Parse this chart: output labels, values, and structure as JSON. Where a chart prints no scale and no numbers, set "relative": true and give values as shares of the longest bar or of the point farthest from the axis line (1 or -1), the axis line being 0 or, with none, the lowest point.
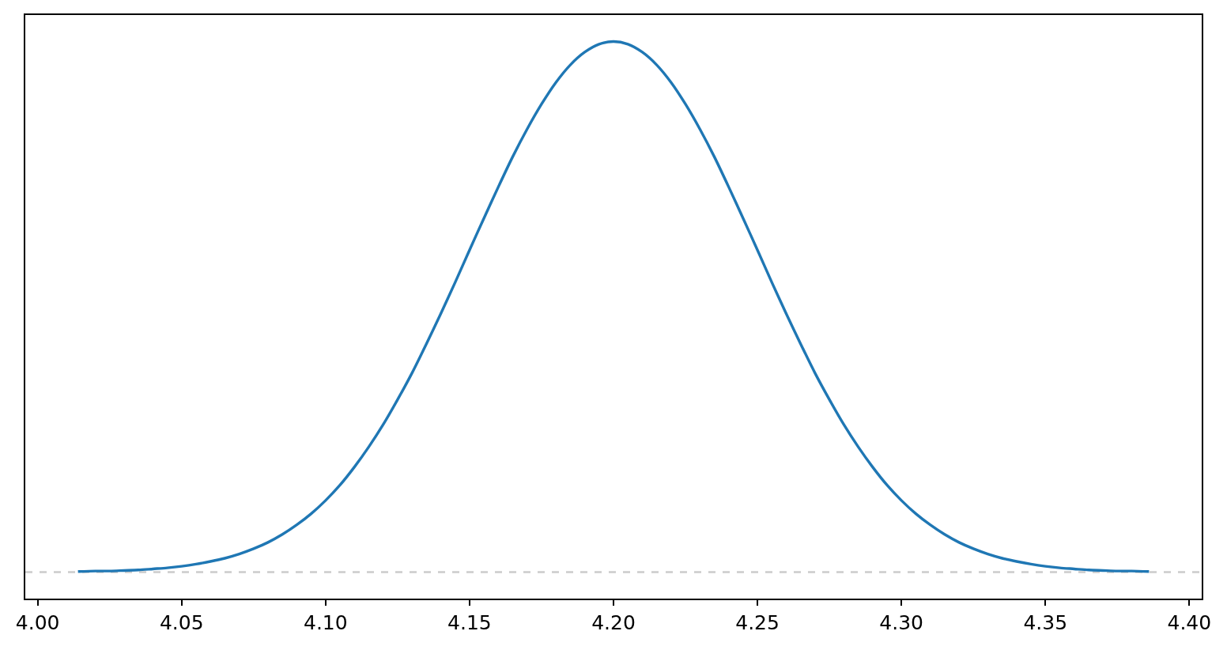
{
  "chart_data": {
    "type": "line",
    "relative": true,
    "tick_labels": "x",
    "x": [
      4.014,
      4.02,
      4.025,
      4.03,
      4.035,
      4.04,
      4.045,
      4.05,
      4.055,
      4.06,
      4.065,
      4.07,
      4.075,
      4.08,
      4.085,
      4.09,
      4.095,
      4.1,
      4.105,
      4.11,
      4.115,
      4.12,
      4.125,
      4.13,
      4.135,
      4.14,
      4.145,
      4.15,
      4.155,
      4.16,
      4.165,
      4.17,
      4.175,
      4.18,
      4.185,
      4.19,
      4.195,
      4.2,
      4.205,
      4.21,
      4.215,
      4.22,
      4.225,
      4.23,
      4.235,
      4.24,
      4.245,
      4.25,
      4.255,
      4.26,
      4.265,
      4.27,
      4.275,
      4.28,
      4.285,
      4.29,
      4.295,
      4.3,
      4.305,
      4.31,
      4.315,
      4.32,
      4.325,
      4.33,
      4.335,
      4.34,
      4.345,
      4.35,
      4.355,
      4.36,
      4.365,
      4.37,
      4.375,
      4.38,
      4.386
    ],
    "series": [
      {
        "color": "#1f77b4",
        "values": [
          0.001,
          0.002,
          0.002,
          0.003,
          0.004,
          0.006,
          0.008,
          0.011,
          0.015,
          0.02,
          0.026,
          0.034,
          0.044,
          0.056,
          0.071,
          0.089,
          0.11,
          0.135,
          0.164,
          0.198,
          0.236,
          0.278,
          0.325,
          0.375,
          0.43,
          0.487,
          0.546,
          0.607,
          0.667,
          0.726,
          0.783,
          0.835,
          0.882,
          0.923,
          0.956,
          0.98,
          0.995,
          1,
          0.995,
          0.98,
          0.956,
          0.923,
          0.882,
          0.835,
          0.783,
          0.726,
          0.667,
          0.607,
          0.546,
          0.487,
          0.43,
          0.375,
          0.325,
          0.278,
          0.236,
          0.198,
          0.164,
          0.135,
          0.11,
          0.089,
          0.071,
          0.056,
          0.044,
          0.034,
          0.026,
          0.02,
          0.015,
          0.011,
          0.008,
          0.006,
          0.004,
          0.003,
          0.002,
          0.002,
          0.001
        ]
      }
    ],
    "xlim": [
      3.9957,
      4.4043
    ],
    "xticks": [
      {
        "value": 4.0,
        "label": "4.00"
      },
      {
        "value": 4.05,
        "label": "4.05"
      },
      {
        "value": 4.1,
        "label": "4.10"
      },
      {
        "value": 4.15,
        "label": "4.15"
      },
      {
        "value": 4.2,
        "label": "4.20"
      },
      {
        "value": 4.25,
        "label": "4.25"
      },
      {
        "value": 4.3,
        "label": "4.30"
      },
      {
        "value": 4.35,
        "label": "4.35"
      },
      {
        "value": 4.4,
        "label": "4.40"
      }
    ],
    "ref_lines": [
      {
        "axis": "y",
        "value": 0,
        "color": "#cccccc",
        "line_style": "dashed"
      }
    ]
  }
}
